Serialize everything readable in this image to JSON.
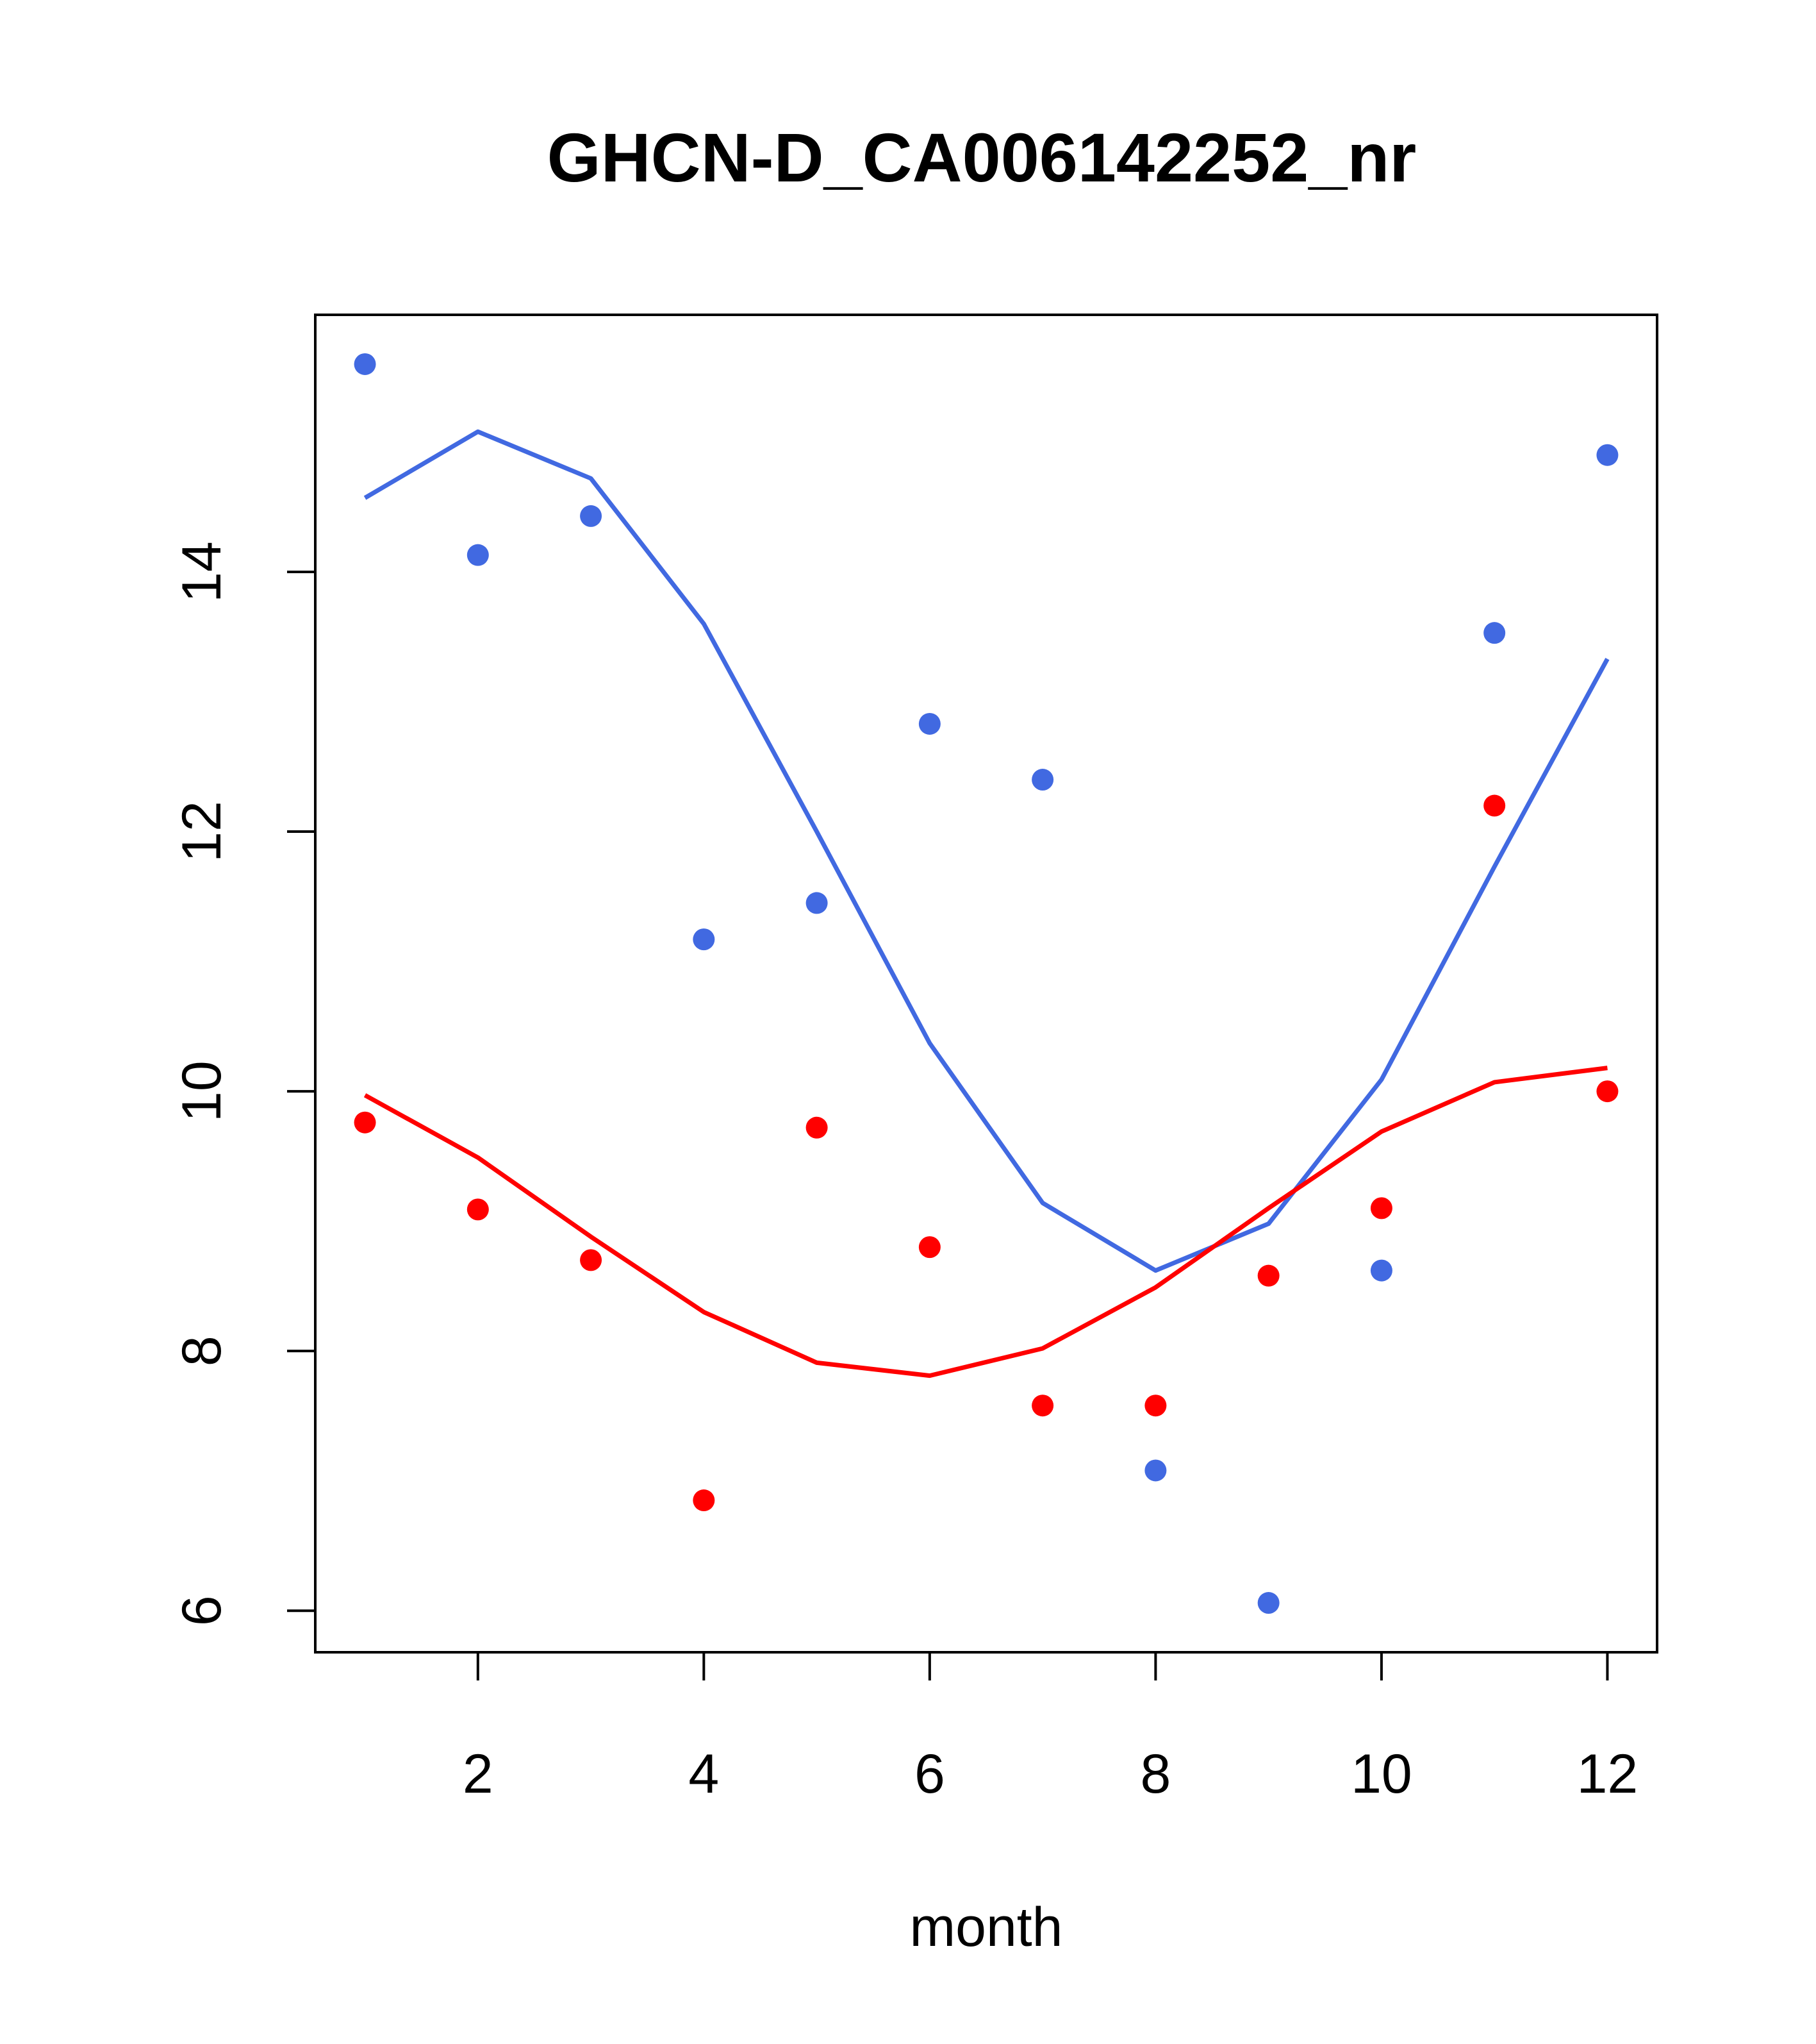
{
  "chart_data": {
    "type": "scatter",
    "title": "GHCN-D_CA006142252_nr",
    "xlabel": "month",
    "ylabel": "",
    "xlim": [
      0.56,
      12.44
    ],
    "ylim": [
      5.68,
      15.98
    ],
    "xticks": [
      2,
      4,
      6,
      8,
      10,
      12
    ],
    "yticks": [
      6,
      8,
      10,
      12,
      14
    ],
    "grid": false,
    "legend": "none",
    "x": [
      1,
      2,
      3,
      4,
      5,
      6,
      7,
      8,
      9,
      10,
      11,
      12
    ],
    "series": [
      {
        "color": "#4169E1",
        "points": [
          15.6,
          14.13,
          14.43,
          11.17,
          11.45,
          12.83,
          12.4,
          7.08,
          6.06,
          8.62,
          13.53,
          14.9
        ],
        "line": [
          14.57,
          15.08,
          14.72,
          13.6,
          12.0,
          10.37,
          9.14,
          8.62,
          8.98,
          10.09,
          11.73,
          13.33
        ]
      },
      {
        "color": "#FF0000",
        "points": [
          9.76,
          9.09,
          8.7,
          6.85,
          9.72,
          8.8,
          7.58,
          7.58,
          8.58,
          9.1,
          12.2,
          10.0
        ],
        "line": [
          9.97,
          9.49,
          8.88,
          8.3,
          7.91,
          7.81,
          8.02,
          8.49,
          9.1,
          9.69,
          10.07,
          10.18
        ]
      }
    ]
  }
}
